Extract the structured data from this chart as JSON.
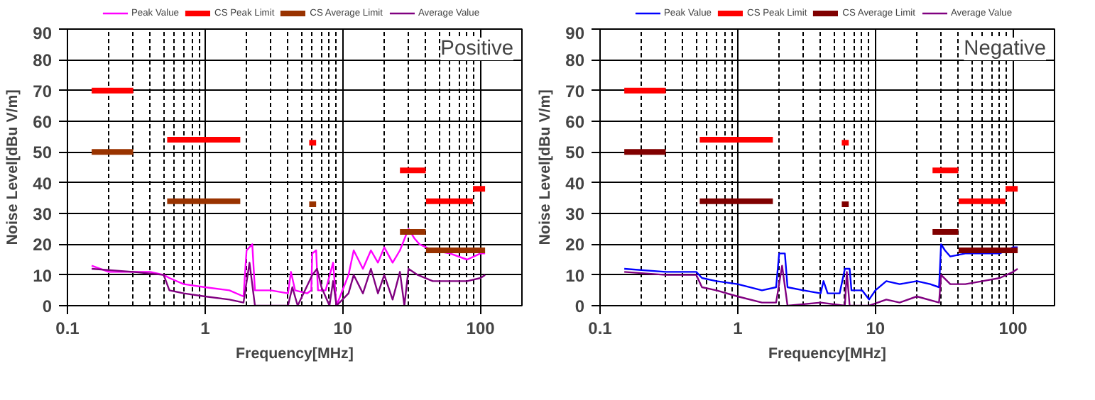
{
  "chart_data": [
    {
      "type": "line",
      "title": "Positive",
      "xlabel": "Frequency[MHz]",
      "ylabel": "Noise Level[dBu V/m]",
      "log": "x",
      "grid": true,
      "legend": "top",
      "xlim": [
        0.1,
        200
      ],
      "xticks": [
        0.1,
        1,
        10,
        100
      ],
      "ylim": [
        0,
        90
      ],
      "yticks": [
        0,
        10,
        20,
        30,
        40,
        50,
        60,
        70,
        80,
        90
      ],
      "series": [
        {
          "name": "Peak Value",
          "color": "#ff00ff",
          "x": [
            0.15,
            0.2,
            0.3,
            0.4,
            0.5,
            0.55,
            0.7,
            1,
            1.5,
            1.9,
            2.0,
            2.2,
            2.3,
            3,
            4,
            4.2,
            4.5,
            5.5,
            5.9,
            6,
            6.4,
            6.6,
            7.5,
            8.5,
            9,
            11,
            12,
            14,
            16,
            18,
            20,
            23,
            26,
            30,
            33,
            36,
            45,
            60,
            80,
            100,
            108
          ],
          "values": [
            13,
            11,
            11,
            11,
            10,
            9,
            7,
            6,
            5,
            3,
            18,
            20,
            5,
            5,
            4,
            11,
            5,
            4,
            5,
            17,
            18,
            5,
            5,
            14,
            0,
            10,
            18,
            12,
            18,
            14,
            19,
            14,
            18,
            25,
            22,
            20,
            18,
            17,
            15,
            17,
            17
          ]
        },
        {
          "name": "CS Peak Limit",
          "color": "#ff0000",
          "x": [
            0.15,
            0.3,
            0.31,
            0.53,
            1.8,
            1.81,
            5.7,
            6.4,
            6.41,
            26,
            40,
            40.1,
            40.2,
            88,
            88.1,
            88.2,
            108
          ],
          "values": [
            70,
            70,
            null,
            54,
            54,
            null,
            53,
            53,
            null,
            44,
            44,
            null,
            34,
            34,
            null,
            38,
            38
          ]
        },
        {
          "name": "CS Average Limit",
          "color": "#993300",
          "x": [
            0.15,
            0.3,
            0.31,
            0.53,
            1.8,
            1.81,
            5.7,
            6.4,
            6.41,
            26,
            40,
            40.1,
            40.2,
            108
          ],
          "values": [
            50,
            50,
            null,
            34,
            34,
            null,
            33,
            33,
            null,
            24,
            24,
            null,
            18,
            18
          ]
        },
        {
          "name": "Average Value",
          "color": "#800080",
          "x": [
            0.15,
            0.3,
            0.5,
            0.55,
            0.7,
            1,
            1.5,
            1.9,
            2.1,
            2.3,
            4,
            4.3,
            4.7,
            6,
            6.5,
            7,
            8,
            8.5,
            9,
            11,
            12,
            14,
            16,
            18,
            20,
            23,
            26,
            28,
            30,
            35,
            45,
            60,
            80,
            100,
            108
          ],
          "values": [
            12,
            11,
            10,
            5,
            4,
            3,
            2,
            1,
            14,
            0,
            0,
            6,
            0,
            10,
            12,
            6,
            0,
            8,
            0,
            4,
            10,
            4,
            12,
            4,
            10,
            2,
            11,
            0,
            12,
            10,
            8,
            8,
            8,
            9,
            10
          ]
        }
      ]
    },
    {
      "type": "line",
      "title": "Negative",
      "xlabel": "Frequency[MHz]",
      "ylabel": "Noise Level[dBu V/m]",
      "log": "x",
      "grid": true,
      "legend": "top",
      "xlim": [
        0.1,
        200
      ],
      "xticks": [
        0.1,
        1,
        10,
        100
      ],
      "ylim": [
        0,
        90
      ],
      "yticks": [
        0,
        10,
        20,
        30,
        40,
        50,
        60,
        70,
        80,
        90
      ],
      "series": [
        {
          "name": "Peak Value",
          "color": "#0000ff",
          "x": [
            0.15,
            0.3,
            0.5,
            0.55,
            0.7,
            1,
            1.5,
            1.9,
            2.0,
            2.2,
            2.3,
            3,
            4,
            4.2,
            4.5,
            5.5,
            6,
            6.5,
            6.7,
            8,
            9,
            10,
            12,
            15,
            20,
            25,
            29,
            30,
            32,
            35,
            45,
            60,
            80,
            100,
            108
          ],
          "values": [
            12,
            11,
            11,
            9,
            8,
            7,
            5,
            6,
            17,
            17,
            6,
            5,
            4,
            8,
            4,
            4,
            12,
            12,
            5,
            5,
            2,
            5,
            8,
            7,
            8,
            7,
            6,
            20,
            18,
            16,
            17,
            17,
            17,
            19,
            19
          ]
        },
        {
          "name": "CS Peak Limit",
          "color": "#ff0000",
          "x": [
            0.15,
            0.3,
            0.31,
            0.53,
            1.8,
            1.81,
            5.7,
            6.4,
            6.41,
            26,
            40,
            40.1,
            40.2,
            88,
            88.1,
            88.2,
            108
          ],
          "values": [
            70,
            70,
            null,
            54,
            54,
            null,
            53,
            53,
            null,
            44,
            44,
            null,
            34,
            34,
            null,
            38,
            38
          ]
        },
        {
          "name": "CS Average Limit",
          "color": "#800000",
          "x": [
            0.15,
            0.3,
            0.31,
            0.53,
            1.8,
            1.81,
            5.7,
            6.4,
            6.41,
            26,
            40,
            40.1,
            40.2,
            108
          ],
          "values": [
            50,
            50,
            null,
            34,
            34,
            null,
            33,
            33,
            null,
            24,
            24,
            null,
            18,
            18
          ]
        },
        {
          "name": "Average Value",
          "color": "#800080",
          "x": [
            0.15,
            0.3,
            0.5,
            0.55,
            0.7,
            1,
            1.5,
            1.9,
            2.1,
            2.3,
            4,
            6,
            6.2,
            6.5,
            9,
            12,
            15,
            20,
            29,
            30,
            35,
            45,
            60,
            80,
            100,
            108
          ],
          "values": [
            11,
            10,
            10,
            6,
            5,
            3,
            1,
            1,
            13,
            0,
            1,
            0,
            11,
            0,
            0,
            2,
            1,
            3,
            1,
            10,
            7,
            7,
            8,
            9,
            11,
            12
          ]
        }
      ]
    }
  ]
}
